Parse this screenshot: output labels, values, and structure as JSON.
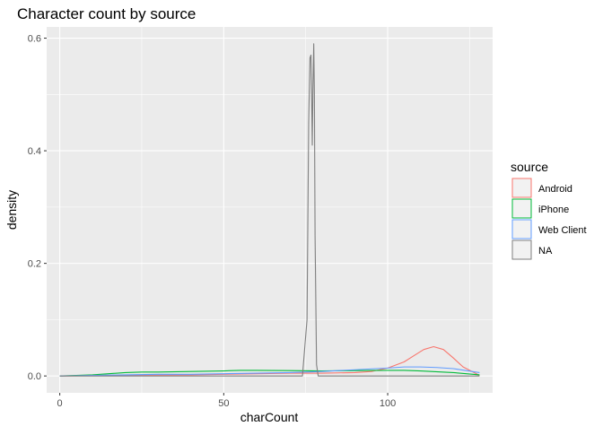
{
  "chart_data": {
    "type": "line",
    "title": "Character count by source",
    "xlabel": "charCount",
    "ylabel": "density",
    "xlim": [
      -4,
      132
    ],
    "ylim": [
      -0.03,
      0.62
    ],
    "x_ticks": [
      0,
      50,
      100
    ],
    "x_tick_labels": [
      "0",
      "50",
      "100"
    ],
    "y_ticks": [
      0.0,
      0.2,
      0.4,
      0.6
    ],
    "y_tick_labels": [
      "0.0",
      "0.2",
      "0.4",
      "0.6"
    ],
    "grid": true,
    "legend": {
      "title": "source",
      "position": "right"
    },
    "series": [
      {
        "name": "Android",
        "color": "#F8766D",
        "x": [
          0,
          10,
          20,
          30,
          40,
          50,
          60,
          70,
          80,
          90,
          95,
          100,
          105,
          108,
          111,
          114,
          117,
          120,
          123,
          128
        ],
        "y": [
          0.0,
          0.0005,
          0.001,
          0.0015,
          0.002,
          0.003,
          0.004,
          0.005,
          0.005,
          0.006,
          0.008,
          0.014,
          0.025,
          0.036,
          0.047,
          0.052,
          0.047,
          0.032,
          0.016,
          0.001
        ]
      },
      {
        "name": "iPhone",
        "color": "#00BA38",
        "x": [
          0,
          10,
          20,
          25,
          30,
          40,
          50,
          55,
          60,
          70,
          80,
          90,
          100,
          105,
          110,
          120,
          128
        ],
        "y": [
          0.0,
          0.002,
          0.006,
          0.007,
          0.007,
          0.008,
          0.009,
          0.01,
          0.01,
          0.0095,
          0.009,
          0.0095,
          0.01,
          0.01,
          0.009,
          0.006,
          0.002
        ]
      },
      {
        "name": "Web Client",
        "color": "#619CFF",
        "x": [
          0,
          10,
          20,
          30,
          40,
          50,
          60,
          70,
          80,
          90,
          100,
          105,
          110,
          115,
          120,
          128
        ],
        "y": [
          0.0,
          0.001,
          0.002,
          0.003,
          0.003,
          0.004,
          0.005,
          0.006,
          0.008,
          0.011,
          0.014,
          0.016,
          0.016,
          0.015,
          0.013,
          0.006
        ]
      },
      {
        "name": "NA",
        "color": "#7F7F7F",
        "x": [
          0,
          74,
          75.4,
          75.9,
          76.3,
          76.6,
          76.8,
          77.0,
          77.2,
          77.45,
          77.65,
          77.85,
          78.3,
          78.8,
          128
        ],
        "y": [
          0.0,
          0.0,
          0.1,
          0.45,
          0.565,
          0.57,
          0.5,
          0.41,
          0.51,
          0.59,
          0.5,
          0.25,
          0.02,
          0.0,
          0.0
        ]
      }
    ]
  }
}
